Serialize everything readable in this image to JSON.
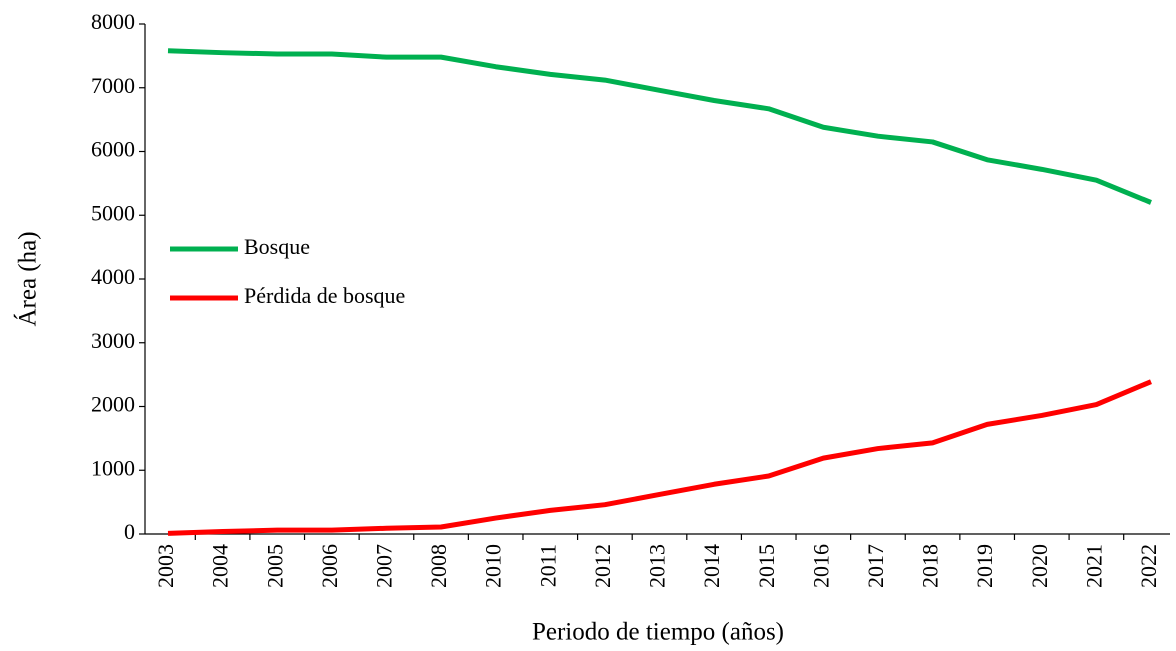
{
  "chart_data": {
    "type": "line",
    "x_label": "Periodo de tiempo (años)",
    "y_label": "Área (ha)",
    "categories": [
      "2003",
      "2004",
      "2005",
      "2006",
      "2007",
      "2008",
      "2010",
      "2011",
      "2012",
      "2013",
      "2014",
      "2015",
      "2016",
      "2017",
      "2018",
      "2019",
      "2020",
      "2021",
      "2022"
    ],
    "series": [
      {
        "name": "Bosque",
        "color": "#00b050",
        "values": [
          7580,
          7550,
          7530,
          7530,
          7480,
          7480,
          7330,
          7210,
          7120,
          6960,
          6800,
          6670,
          6380,
          6240,
          6150,
          5870,
          5720,
          5550,
          5200
        ]
      },
      {
        "name": "Pérdida de bosque",
        "color": "#ff0000",
        "values": [
          10,
          40,
          60,
          60,
          90,
          110,
          250,
          370,
          460,
          620,
          780,
          910,
          1190,
          1340,
          1430,
          1720,
          1860,
          2030,
          2390
        ]
      }
    ],
    "ylim": [
      0,
      8000
    ],
    "yticks": [
      0,
      1000,
      2000,
      3000,
      4000,
      5000,
      6000,
      7000,
      8000
    ],
    "legend": "left"
  }
}
